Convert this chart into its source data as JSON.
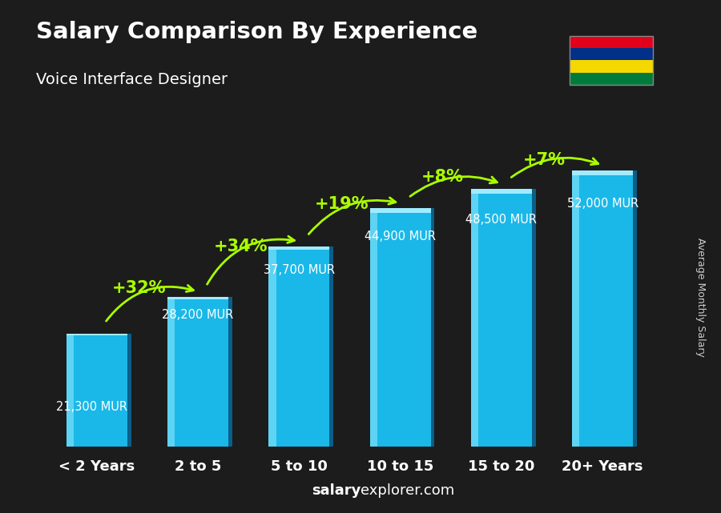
{
  "title": "Salary Comparison By Experience",
  "subtitle": "Voice Interface Designer",
  "categories": [
    "< 2 Years",
    "2 to 5",
    "5 to 10",
    "10 to 15",
    "15 to 20",
    "20+ Years"
  ],
  "values": [
    21300,
    28200,
    37700,
    44900,
    48500,
    52000
  ],
  "value_labels": [
    "21,300 MUR",
    "28,200 MUR",
    "37,700 MUR",
    "44,900 MUR",
    "48,500 MUR",
    "52,000 MUR"
  ],
  "pct_changes": [
    "+32%",
    "+34%",
    "+19%",
    "+8%",
    "+7%"
  ],
  "bar_color_main": "#1ab8e8",
  "bar_color_light": "#5dd4f4",
  "bar_color_dark": "#0e7aaa",
  "bar_color_side": "#0a5f88",
  "bar_color_top": "#a0ecff",
  "bg_dark": "#1c1c1c",
  "text_white": "#ffffff",
  "text_green": "#aaff00",
  "ylabel": "Average Monthly Salary",
  "footer_bold": "salary",
  "footer_normal": "explorer.com",
  "flag_stripes": [
    "#e2001a",
    "#003087",
    "#f5d800",
    "#007b3b"
  ],
  "ylim": [
    0,
    60000
  ],
  "bar_width": 0.6,
  "x_positions": [
    0,
    1,
    2,
    3,
    4,
    5
  ]
}
